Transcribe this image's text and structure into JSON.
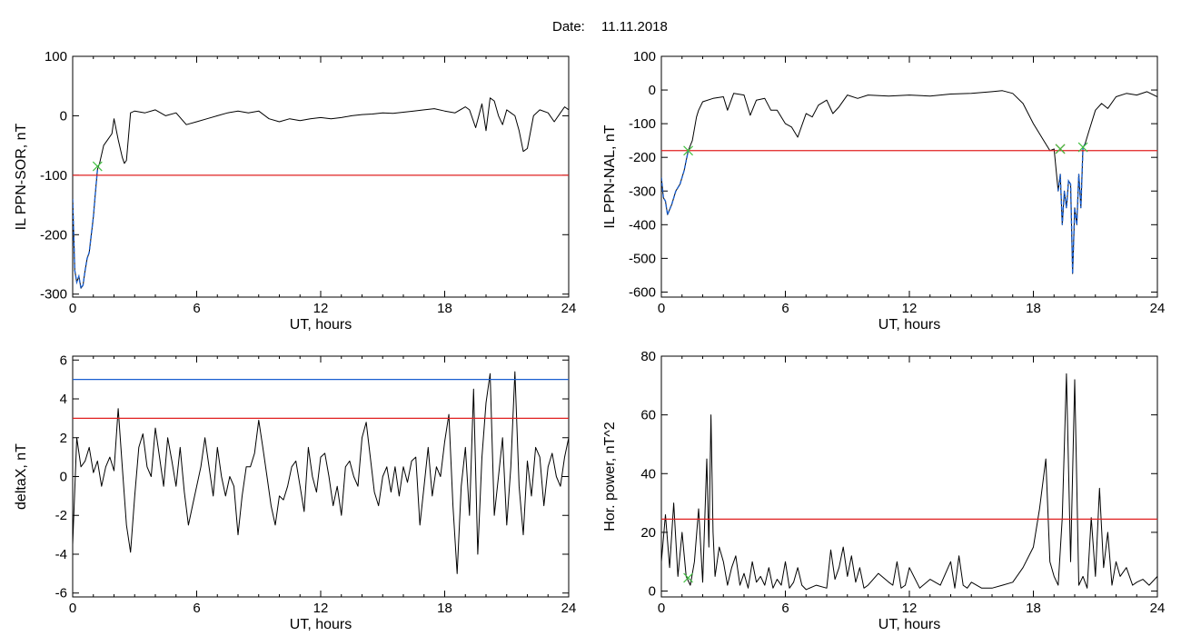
{
  "figure": {
    "date_label": "Date:",
    "date_value": "11.11.2018"
  },
  "colors": {
    "trace": "#000000",
    "threshold_red": "#e02020",
    "threshold_blue": "#1a5fd0",
    "highlight_blue": "#1a5fd0",
    "marker_green": "#40c040",
    "marker_red": "#c02020"
  },
  "chart_data": [
    {
      "id": "sor",
      "type": "line",
      "title": "",
      "xlabel": "UT, hours",
      "ylabel": "IL PPN-SOR, nT",
      "xlim": [
        0,
        24
      ],
      "ylim": [
        -305,
        100
      ],
      "xticks": [
        0,
        6,
        12,
        18,
        24
      ],
      "yticks": [
        100,
        0,
        -100,
        -200,
        -300
      ],
      "grid": false,
      "series": [
        {
          "x": [
            0,
            0.1,
            0.2,
            0.3,
            0.4,
            0.5,
            0.6,
            0.7,
            0.8,
            0.9,
            1.0,
            1.1,
            1.2,
            1.3,
            1.5,
            1.7,
            1.9,
            2.0,
            2.2,
            2.4,
            2.5,
            2.6,
            2.8,
            3.0,
            3.5,
            4.0,
            4.5,
            5.0,
            5.5,
            6.0,
            6.5,
            7.0,
            7.5,
            8.0,
            8.5,
            9.0,
            9.5,
            10.0,
            10.5,
            11.0,
            11.5,
            12.0,
            12.5,
            13.0,
            13.5,
            14.0,
            14.5,
            15.0,
            15.5,
            16.0,
            16.5,
            17.0,
            17.5,
            18.0,
            18.5,
            19.0,
            19.2,
            19.5,
            19.8,
            20.0,
            20.2,
            20.4,
            20.6,
            20.8,
            21.0,
            21.2,
            21.4,
            21.6,
            21.8,
            22.0,
            22.3,
            22.6,
            23.0,
            23.3,
            23.6,
            23.8,
            24.0
          ],
          "values": [
            -140,
            -260,
            -280,
            -270,
            -290,
            -285,
            -260,
            -240,
            -230,
            -200,
            -170,
            -130,
            -90,
            -80,
            -50,
            -40,
            -30,
            -5,
            -40,
            -70,
            -80,
            -75,
            5,
            8,
            5,
            10,
            0,
            5,
            -15,
            -10,
            -5,
            0,
            5,
            8,
            5,
            8,
            -5,
            -10,
            -5,
            -8,
            -5,
            -3,
            -5,
            -3,
            0,
            2,
            3,
            5,
            4,
            6,
            8,
            10,
            12,
            8,
            5,
            15,
            10,
            -20,
            20,
            -25,
            30,
            25,
            0,
            -15,
            10,
            5,
            0,
            -25,
            -60,
            -55,
            0,
            10,
            5,
            -10,
            5,
            15,
            10
          ],
          "highlight_until_x": 1.2
        }
      ],
      "thresholds": [
        {
          "y": -100,
          "color": "red"
        }
      ],
      "markers": [
        {
          "x": 1.2,
          "y": -85,
          "color": "green"
        }
      ]
    },
    {
      "id": "nal",
      "type": "line",
      "title": "",
      "xlabel": "UT, hours",
      "ylabel": "IL PPN-NAL, nT",
      "xlim": [
        0,
        24
      ],
      "ylim": [
        -615,
        100
      ],
      "xticks": [
        0,
        6,
        12,
        18,
        24
      ],
      "yticks": [
        100,
        0,
        -100,
        -200,
        -300,
        -400,
        -500,
        -600
      ],
      "grid": false,
      "series": [
        {
          "x": [
            0,
            0.1,
            0.2,
            0.3,
            0.5,
            0.7,
            0.9,
            1.1,
            1.3,
            1.5,
            1.7,
            1.8,
            2.0,
            2.5,
            3.0,
            3.2,
            3.5,
            4.0,
            4.3,
            4.6,
            5.0,
            5.3,
            5.6,
            6.0,
            6.3,
            6.6,
            7.0,
            7.3,
            7.6,
            8.0,
            8.3,
            8.6,
            9.0,
            9.5,
            10.0,
            11.0,
            12.0,
            13.0,
            14.0,
            15.0,
            16.0,
            16.5,
            17.0,
            17.5,
            18.0,
            18.5,
            18.8,
            19.0,
            19.2,
            19.3,
            19.4,
            19.5,
            19.6,
            19.7,
            19.8,
            19.9,
            20.0,
            20.1,
            20.2,
            20.3,
            20.4,
            20.5,
            20.7,
            21.0,
            21.3,
            21.6,
            22.0,
            22.5,
            23.0,
            23.5,
            24.0
          ],
          "values": [
            -260,
            -320,
            -330,
            -370,
            -340,
            -300,
            -280,
            -240,
            -180,
            -150,
            -80,
            -60,
            -35,
            -25,
            -20,
            -60,
            -10,
            -15,
            -75,
            -30,
            -25,
            -60,
            -60,
            -100,
            -110,
            -140,
            -70,
            -80,
            -45,
            -30,
            -70,
            -50,
            -15,
            -25,
            -15,
            -18,
            -15,
            -18,
            -12,
            -10,
            -5,
            -2,
            -10,
            -40,
            -100,
            -150,
            -180,
            -175,
            -300,
            -250,
            -400,
            -300,
            -350,
            -270,
            -280,
            -545,
            -350,
            -400,
            -250,
            -350,
            -170,
            -160,
            -120,
            -60,
            -40,
            -55,
            -20,
            -10,
            -15,
            -5,
            -20
          ],
          "highlight_ranges": [
            [
              0,
              1.3
            ],
            [
              19.2,
              20.5
            ]
          ]
        }
      ],
      "thresholds": [
        {
          "y": -180,
          "color": "red"
        }
      ],
      "markers": [
        {
          "x": 1.3,
          "y": -180,
          "color": "green"
        },
        {
          "x": 19.3,
          "y": -175,
          "color": "red"
        },
        {
          "x": 19.3,
          "y": -175,
          "color": "green"
        },
        {
          "x": 20.4,
          "y": -170,
          "color": "green"
        }
      ]
    },
    {
      "id": "deltax",
      "type": "line",
      "title": "",
      "xlabel": "UT, hours",
      "ylabel": "deltaX, nT",
      "xlim": [
        0,
        24
      ],
      "ylim": [
        -6.2,
        6.2
      ],
      "xticks": [
        0,
        6,
        12,
        18,
        24
      ],
      "yticks": [
        6,
        4,
        2,
        0,
        -2,
        -4,
        -6
      ],
      "grid": false,
      "series": [
        {
          "x": [
            0,
            0.2,
            0.4,
            0.6,
            0.8,
            1.0,
            1.2,
            1.4,
            1.6,
            1.8,
            2.0,
            2.2,
            2.4,
            2.6,
            2.8,
            3.0,
            3.2,
            3.4,
            3.6,
            3.8,
            4.0,
            4.2,
            4.4,
            4.6,
            4.8,
            5.0,
            5.2,
            5.4,
            5.6,
            5.8,
            6.0,
            6.2,
            6.4,
            6.6,
            6.8,
            7.0,
            7.2,
            7.4,
            7.6,
            7.8,
            8.0,
            8.2,
            8.4,
            8.6,
            8.8,
            9.0,
            9.2,
            9.4,
            9.6,
            9.8,
            10.0,
            10.2,
            10.4,
            10.6,
            10.8,
            11.0,
            11.2,
            11.4,
            11.6,
            11.8,
            12.0,
            12.2,
            12.4,
            12.6,
            12.8,
            13.0,
            13.2,
            13.4,
            13.6,
            13.8,
            14.0,
            14.2,
            14.4,
            14.6,
            14.8,
            15.0,
            15.2,
            15.4,
            15.6,
            15.8,
            16.0,
            16.2,
            16.4,
            16.6,
            16.8,
            17.0,
            17.2,
            17.4,
            17.6,
            17.8,
            18.0,
            18.2,
            18.4,
            18.6,
            18.8,
            19.0,
            19.2,
            19.4,
            19.6,
            19.8,
            20.0,
            20.2,
            20.4,
            20.6,
            20.8,
            21.0,
            21.2,
            21.4,
            21.6,
            21.8,
            22.0,
            22.2,
            22.4,
            22.6,
            22.8,
            23.0,
            23.2,
            23.4,
            23.6,
            23.8,
            24.0
          ],
          "values": [
            -3.5,
            2.0,
            0.5,
            0.8,
            1.5,
            0.2,
            0.8,
            -0.5,
            0.5,
            1.0,
            0.3,
            3.5,
            0.5,
            -2.5,
            -3.9,
            -1.0,
            1.5,
            2.2,
            0.5,
            0.0,
            2.5,
            1.0,
            -0.5,
            2.0,
            0.8,
            -0.5,
            1.5,
            -0.8,
            -2.5,
            -1.5,
            -0.5,
            0.5,
            2.0,
            0.5,
            -1.0,
            1.5,
            0.0,
            -1.0,
            0.0,
            -0.5,
            -3.0,
            -1.0,
            0.5,
            0.5,
            1.2,
            2.9,
            1.5,
            0.0,
            -1.5,
            -2.5,
            -1.0,
            -1.2,
            -0.5,
            0.5,
            0.8,
            -0.5,
            -1.8,
            1.5,
            0.0,
            -0.8,
            1.0,
            1.2,
            0.0,
            -1.5,
            -0.5,
            -2.0,
            0.5,
            0.8,
            0.0,
            -0.5,
            2.0,
            2.8,
            1.0,
            -0.8,
            -1.5,
            0.0,
            0.5,
            -0.8,
            0.5,
            -1.0,
            0.5,
            -0.3,
            0.8,
            1.0,
            -2.5,
            -0.5,
            1.5,
            -1.0,
            0.5,
            0.0,
            1.8,
            3.2,
            -1.5,
            -5.0,
            -0.5,
            1.5,
            -2.0,
            4.5,
            -4.0,
            1.0,
            3.8,
            5.3,
            -2.0,
            0.0,
            2.0,
            -2.5,
            0.5,
            5.4,
            -0.5,
            -3.0,
            0.8,
            -1.0,
            1.5,
            1.0,
            -1.5,
            0.5,
            1.2,
            0.0,
            -0.5,
            1.0,
            2.0
          ],
          "highlight_ranges": []
        }
      ],
      "thresholds": [
        {
          "y": 5.0,
          "color": "blue"
        },
        {
          "y": 3.0,
          "color": "red"
        }
      ],
      "markers": []
    },
    {
      "id": "power",
      "type": "line",
      "title": "",
      "xlabel": "UT, hours",
      "ylabel": "Hor. power, nT^2",
      "xlim": [
        0,
        24
      ],
      "ylim": [
        -2,
        80
      ],
      "xticks": [
        0,
        6,
        12,
        18,
        24
      ],
      "yticks": [
        80,
        60,
        40,
        20,
        0
      ],
      "grid": false,
      "series": [
        {
          "x": [
            0,
            0.2,
            0.4,
            0.6,
            0.8,
            1.0,
            1.2,
            1.4,
            1.6,
            1.8,
            2.0,
            2.2,
            2.3,
            2.4,
            2.5,
            2.6,
            2.8,
            3.0,
            3.2,
            3.4,
            3.6,
            3.8,
            4.0,
            4.2,
            4.4,
            4.6,
            4.8,
            5.0,
            5.2,
            5.4,
            5.6,
            5.8,
            6.0,
            6.2,
            6.4,
            6.6,
            6.8,
            7.0,
            7.5,
            8.0,
            8.2,
            8.4,
            8.6,
            8.8,
            9.0,
            9.2,
            9.4,
            9.6,
            9.8,
            10.0,
            10.5,
            11.0,
            11.2,
            11.4,
            11.6,
            11.8,
            12.0,
            12.5,
            13.0,
            13.5,
            14.0,
            14.2,
            14.4,
            14.6,
            14.8,
            15.0,
            15.5,
            16.0,
            16.5,
            17.0,
            17.5,
            18.0,
            18.3,
            18.6,
            18.8,
            19.0,
            19.2,
            19.4,
            19.6,
            19.8,
            20.0,
            20.2,
            20.4,
            20.6,
            20.8,
            21.0,
            21.2,
            21.4,
            21.6,
            21.8,
            22.0,
            22.2,
            22.5,
            22.8,
            23.0,
            23.3,
            23.6,
            24.0
          ],
          "values": [
            10,
            26,
            8,
            30,
            5,
            20,
            5,
            2,
            10,
            28,
            3,
            45,
            15,
            60,
            20,
            5,
            15,
            10,
            2,
            8,
            12,
            2,
            6,
            1,
            10,
            3,
            5,
            2,
            8,
            1,
            4,
            2,
            10,
            1,
            3,
            8,
            2,
            0.5,
            2,
            1,
            14,
            4,
            8,
            15,
            5,
            12,
            3,
            8,
            1,
            2,
            6,
            3,
            2,
            10,
            1,
            2,
            8,
            1,
            4,
            2,
            10,
            1,
            12,
            2,
            1,
            3,
            1,
            1,
            2,
            3,
            8,
            15,
            28,
            45,
            10,
            5,
            2,
            25,
            74,
            10,
            72,
            2,
            5,
            1,
            25,
            5,
            35,
            8,
            20,
            2,
            10,
            5,
            8,
            2,
            3,
            4,
            2,
            5
          ],
          "highlight_ranges": []
        }
      ],
      "thresholds": [
        {
          "y": 24.5,
          "color": "red"
        }
      ],
      "markers": [
        {
          "x": 1.3,
          "y": 4.5,
          "color": "green"
        }
      ]
    }
  ]
}
